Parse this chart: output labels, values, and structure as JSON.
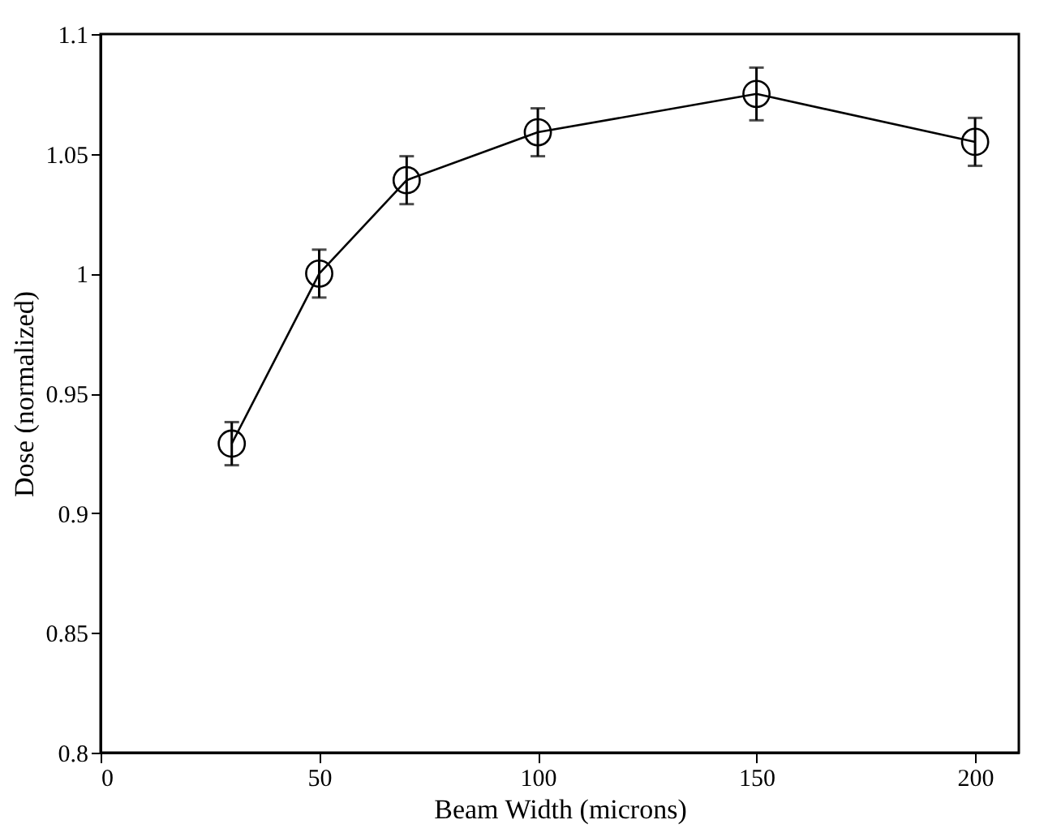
{
  "chart_data": {
    "type": "line",
    "xlabel": "Beam Width (microns)",
    "ylabel": "Dose (normalized)",
    "x": [
      30,
      50,
      70,
      100,
      150,
      200
    ],
    "series": [
      {
        "color": "#000000",
        "values": [
          0.929,
          1.0,
          1.039,
          1.059,
          1.075,
          1.055
        ],
        "errors": [
          0.009,
          0.01,
          0.01,
          0.01,
          0.011,
          0.01
        ]
      }
    ],
    "xlim": [
      0,
      210
    ],
    "xticks": [
      0,
      50,
      100,
      150,
      200
    ],
    "ylim": [
      0.8,
      1.1
    ],
    "yticks": [
      0.8,
      0.85,
      0.9,
      0.95,
      1,
      1.05,
      1.1
    ],
    "marker": "circle",
    "line_style": "solid",
    "grid": false
  }
}
